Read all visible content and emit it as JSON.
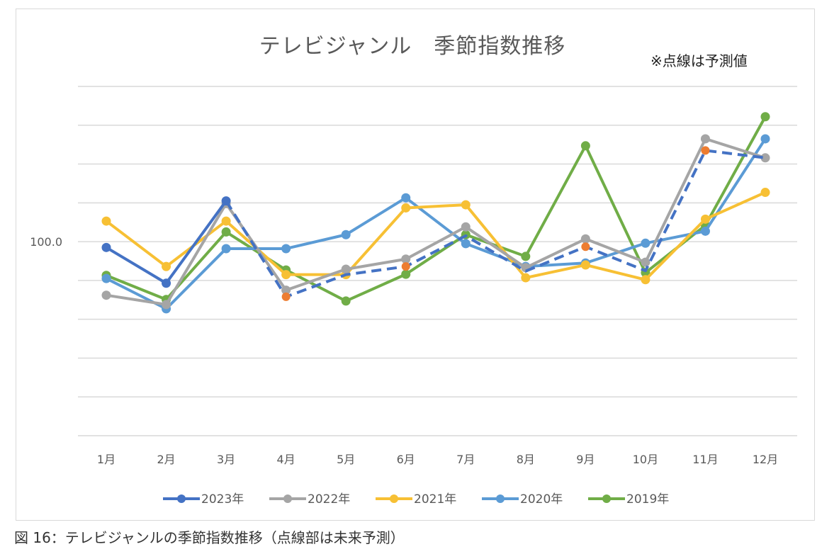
{
  "chart_data": {
    "type": "line",
    "title": "テレビジャンル　季節指数推移",
    "annotation": "※点線は予測値",
    "caption": "図 16：テレビジャンルの季節指数推移（点線部は未来予測）",
    "categories": [
      "1月",
      "2月",
      "3月",
      "4月",
      "5月",
      "6月",
      "7月",
      "8月",
      "9月",
      "10月",
      "11月",
      "12月"
    ],
    "y_tick_labels": [
      {
        "value": 100,
        "label": "100.0"
      }
    ],
    "ylim": [
      50,
      140
    ],
    "grid": true,
    "legend_position": "bottom",
    "forecast_color": "#ED7D31",
    "series": [
      {
        "name": "2023年",
        "color": "#4472C4",
        "values": [
          98.5,
          89.3,
          110.5,
          85.8,
          91.5,
          93.6,
          101.5,
          92.4,
          98.7,
          92.5,
          123.5,
          121.6
        ],
        "forecast_from_index": 3
      },
      {
        "name": "2022年",
        "color": "#A5A5A5",
        "values": [
          86.2,
          83.8,
          109.8,
          87.5,
          92.9,
          95.5,
          103.8,
          93.3,
          100.7,
          94.7,
          126.5,
          121.6
        ]
      },
      {
        "name": "2021年",
        "color": "#F7C034",
        "values": [
          105.3,
          93.6,
          105.3,
          91.5,
          91.5,
          108.7,
          109.5,
          90.7,
          94.0,
          90.2,
          105.8,
          112.7
        ]
      },
      {
        "name": "2020年",
        "color": "#5B9BD5",
        "values": [
          90.5,
          82.7,
          98.2,
          98.2,
          101.8,
          111.3,
          99.5,
          93.6,
          94.5,
          99.6,
          102.7,
          126.5
        ]
      },
      {
        "name": "2019年",
        "color": "#70AD47",
        "values": [
          91.3,
          85.1,
          102.5,
          92.7,
          84.7,
          91.6,
          101.8,
          96.2,
          124.7,
          92.0,
          104.2,
          132.2
        ]
      }
    ]
  }
}
